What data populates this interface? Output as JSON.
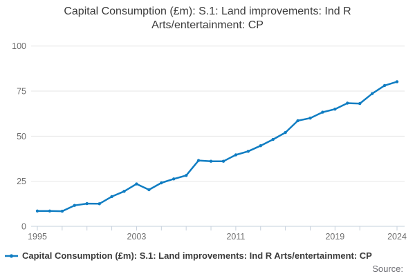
{
  "title": {
    "line1": "Capital Consumption (£m): S.1: Land improvements: Ind R",
    "line2": "Arts/entertainment: CP"
  },
  "legend": {
    "label": "Capital Consumption (£m): S.1: Land improvements: Ind R Arts/entertainment: CP"
  },
  "footer": {
    "source_label": "Source:"
  },
  "chart_data": {
    "type": "line",
    "title": "Capital Consumption (£m): S.1: Land improvements: Ind R Arts/entertainment: CP",
    "x": [
      1995,
      1996,
      1997,
      1998,
      1999,
      2000,
      2001,
      2002,
      2003,
      2004,
      2005,
      2006,
      2007,
      2008,
      2009,
      2010,
      2011,
      2012,
      2013,
      2014,
      2015,
      2016,
      2017,
      2018,
      2019,
      2020,
      2021,
      2022,
      2023,
      2024
    ],
    "series": [
      {
        "name": "Capital Consumption (£m): S.1: Land improvements: Ind R Arts/entertainment: CP",
        "color": "#107dc2",
        "values": [
          8.5,
          8.5,
          8.4,
          11.6,
          12.6,
          12.5,
          16.5,
          19.4,
          23.5,
          20.3,
          24.1,
          26.3,
          28.2,
          36.5,
          36.1,
          36.1,
          39.6,
          41.6,
          44.7,
          48.2,
          52,
          58.6,
          60,
          63.3,
          65,
          68.3,
          68.1,
          73.6,
          78.1,
          80.2
        ]
      }
    ],
    "xlabel": "",
    "ylabel": "",
    "ylim": [
      0,
      100
    ],
    "yticks": [
      0,
      25,
      50,
      75,
      100
    ],
    "x_tick_years": [
      1995,
      1997,
      1999,
      2001,
      2003,
      2005,
      2007,
      2009,
      2011,
      2013,
      2015,
      2017,
      2019,
      2021,
      2024
    ],
    "x_tick_labels": [
      {
        "year": 1995,
        "label": "1995"
      },
      {
        "year": 2003,
        "label": "2003"
      },
      {
        "year": 2011,
        "label": "2011"
      },
      {
        "year": 2019,
        "label": "2019"
      },
      {
        "year": 2024,
        "label": "2024"
      }
    ],
    "grid": "horizontal",
    "legend_position": "bottom-left",
    "colors": {
      "grid": "#e6e6e6",
      "axis": "#c6d0dc",
      "tick_label": "#6e6e6e"
    }
  }
}
